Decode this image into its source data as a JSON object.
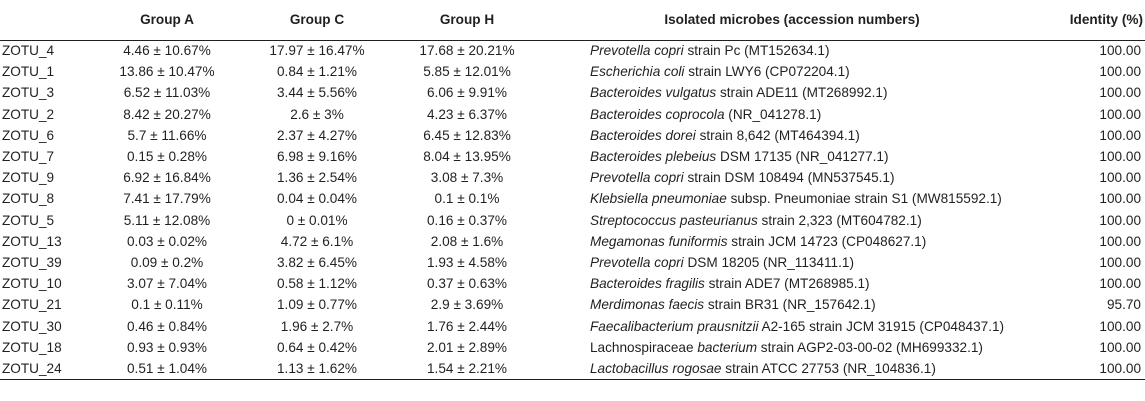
{
  "table": {
    "headers": {
      "id": "",
      "group_a": "Group A",
      "group_c": "Group C",
      "group_h": "Group H",
      "microbes": "Isolated microbes (accession numbers)",
      "identity": "Identity (%)"
    },
    "rows": [
      {
        "id": "ZOTU_4",
        "a": "4.46 ± 10.67%",
        "c": "17.97 ± 16.47%",
        "h": "17.68 ± 20.21%",
        "microbe": [
          {
            "t": "Prevotella copri",
            "i": true
          },
          {
            "t": " strain Pc (MT152634.1)",
            "i": false
          }
        ],
        "identity": "100.00"
      },
      {
        "id": "ZOTU_1",
        "a": "13.86 ± 10.47%",
        "c": "0.84 ± 1.21%",
        "h": "5.85 ± 12.01%",
        "microbe": [
          {
            "t": "Escherichia coli",
            "i": true
          },
          {
            "t": " strain LWY6 (CP072204.1)",
            "i": false
          }
        ],
        "identity": "100.00"
      },
      {
        "id": "ZOTU_3",
        "a": "6.52 ± 11.03%",
        "c": "3.44 ± 5.56%",
        "h": "6.06 ± 9.91%",
        "microbe": [
          {
            "t": "Bacteroides vulgatus",
            "i": true
          },
          {
            "t": " strain ADE11 (MT268992.1)",
            "i": false
          }
        ],
        "identity": "100.00"
      },
      {
        "id": "ZOTU_2",
        "a": "8.42 ± 20.27%",
        "c": "2.6 ± 3%",
        "h": "4.23 ± 6.37%",
        "microbe": [
          {
            "t": "Bacteroides coprocola",
            "i": true
          },
          {
            "t": " (NR_041278.1)",
            "i": false
          }
        ],
        "identity": "100.00"
      },
      {
        "id": "ZOTU_6",
        "a": "5.7 ± 11.66%",
        "c": "2.37 ± 4.27%",
        "h": "6.45 ± 12.83%",
        "microbe": [
          {
            "t": "Bacteroides dorei",
            "i": true
          },
          {
            "t": " strain 8,642 (MT464394.1)",
            "i": false
          }
        ],
        "identity": "100.00"
      },
      {
        "id": "ZOTU_7",
        "a": "0.15 ± 0.28%",
        "c": "6.98 ± 9.16%",
        "h": "8.04 ± 13.95%",
        "microbe": [
          {
            "t": "Bacteroides plebeius",
            "i": true
          },
          {
            "t": " DSM 17135 (NR_041277.1)",
            "i": false
          }
        ],
        "identity": "100.00"
      },
      {
        "id": "ZOTU_9",
        "a": "6.92 ± 16.84%",
        "c": "1.36 ± 2.54%",
        "h": "3.08 ± 7.3%",
        "microbe": [
          {
            "t": "Prevotella copri",
            "i": true
          },
          {
            "t": " strain DSM 108494 (MN537545.1)",
            "i": false
          }
        ],
        "identity": "100.00"
      },
      {
        "id": "ZOTU_8",
        "a": "7.41 ± 17.79%",
        "c": "0.04 ± 0.04%",
        "h": "0.1 ± 0.1%",
        "microbe": [
          {
            "t": "Klebsiella pneumoniae",
            "i": true
          },
          {
            "t": " subsp. Pneumoniae strain S1 (MW815592.1)",
            "i": false
          }
        ],
        "identity": "100.00"
      },
      {
        "id": "ZOTU_5",
        "a": "5.11 ± 12.08%",
        "c": "0 ± 0.01%",
        "h": "0.16 ± 0.37%",
        "microbe": [
          {
            "t": "Streptococcus pasteurianus",
            "i": true
          },
          {
            "t": " strain 2,323 (MT604782.1)",
            "i": false
          }
        ],
        "identity": "100.00"
      },
      {
        "id": "ZOTU_13",
        "a": "0.03 ± 0.02%",
        "c": "4.72 ± 6.1%",
        "h": "2.08 ± 1.6%",
        "microbe": [
          {
            "t": "Megamonas funiformis",
            "i": true
          },
          {
            "t": " strain JCM 14723 (CP048627.1)",
            "i": false
          }
        ],
        "identity": "100.00"
      },
      {
        "id": "ZOTU_39",
        "a": "0.09 ± 0.2%",
        "c": "3.82 ± 6.45%",
        "h": "1.93 ± 4.58%",
        "microbe": [
          {
            "t": "Prevotella copri",
            "i": true
          },
          {
            "t": " DSM 18205 (NR_113411.1)",
            "i": false
          }
        ],
        "identity": "100.00"
      },
      {
        "id": "ZOTU_10",
        "a": "3.07 ± 7.04%",
        "c": "0.58 ± 1.12%",
        "h": "0.37 ± 0.63%",
        "microbe": [
          {
            "t": "Bacteroides fragilis",
            "i": true
          },
          {
            "t": " strain ADE7 (MT268985.1)",
            "i": false
          }
        ],
        "identity": "100.00"
      },
      {
        "id": "ZOTU_21",
        "a": "0.1 ± 0.11%",
        "c": "1.09 ± 0.77%",
        "h": "2.9 ± 3.69%",
        "microbe": [
          {
            "t": "Merdimonas faecis",
            "i": true
          },
          {
            "t": " strain BR31 (NR_157642.1)",
            "i": false
          }
        ],
        "identity": "95.70"
      },
      {
        "id": "ZOTU_30",
        "a": "0.46 ± 0.84%",
        "c": "1.96 ± 2.7%",
        "h": "1.76 ± 2.44%",
        "microbe": [
          {
            "t": "Faecalibacterium prausnitzii",
            "i": true
          },
          {
            "t": " A2-165 strain JCM 31915 (CP048437.1)",
            "i": false
          }
        ],
        "identity": "100.00"
      },
      {
        "id": "ZOTU_18",
        "a": "0.93 ± 0.93%",
        "c": "0.64 ± 0.42%",
        "h": "2.01 ± 2.89%",
        "microbe": [
          {
            "t": "Lachnospiraceae ",
            "i": false
          },
          {
            "t": "bacterium",
            "i": true
          },
          {
            "t": " strain AGP2-03-00-02 (MH699332.1)",
            "i": false
          }
        ],
        "identity": "100.00"
      },
      {
        "id": "ZOTU_24",
        "a": "0.51 ± 1.04%",
        "c": "1.13 ± 1.62%",
        "h": "1.54 ± 2.21%",
        "microbe": [
          {
            "t": "Lactobacillus rogosae",
            "i": true
          },
          {
            "t": " strain ATCC 27753 (NR_104836.1)",
            "i": false
          }
        ],
        "identity": "100.00"
      }
    ]
  }
}
